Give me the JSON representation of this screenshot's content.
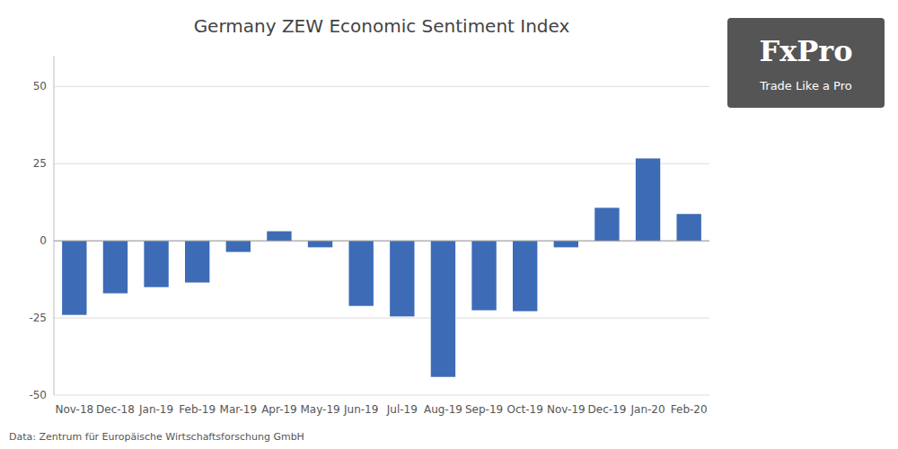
{
  "chart_data": {
    "type": "bar",
    "title": "Germany ZEW Economic Sentiment Index",
    "categories": [
      "Nov-18",
      "Dec-18",
      "Jan-19",
      "Feb-19",
      "Mar-19",
      "Apr-19",
      "May-19",
      "Jun-19",
      "Jul-19",
      "Aug-19",
      "Sep-19",
      "Oct-19",
      "Nov-19",
      "Dec-19",
      "Jan-20",
      "Feb-20"
    ],
    "values": [
      -24,
      -17,
      -15,
      -13.5,
      -3.6,
      3.1,
      -2.1,
      -21.1,
      -24.5,
      -44.1,
      -22.5,
      -22.8,
      -2.1,
      10.7,
      26.7,
      8.7
    ],
    "color": "#3d6bb5",
    "ylim": [
      -50,
      60
    ],
    "yticks": [
      -50,
      -25,
      0,
      25,
      50
    ],
    "grid": true,
    "annotations": [
      "Data: Zentrum für Europäische Wirtschaftsforschung GmbH",
      "FxPro",
      "Trade Like a Pro"
    ]
  }
}
